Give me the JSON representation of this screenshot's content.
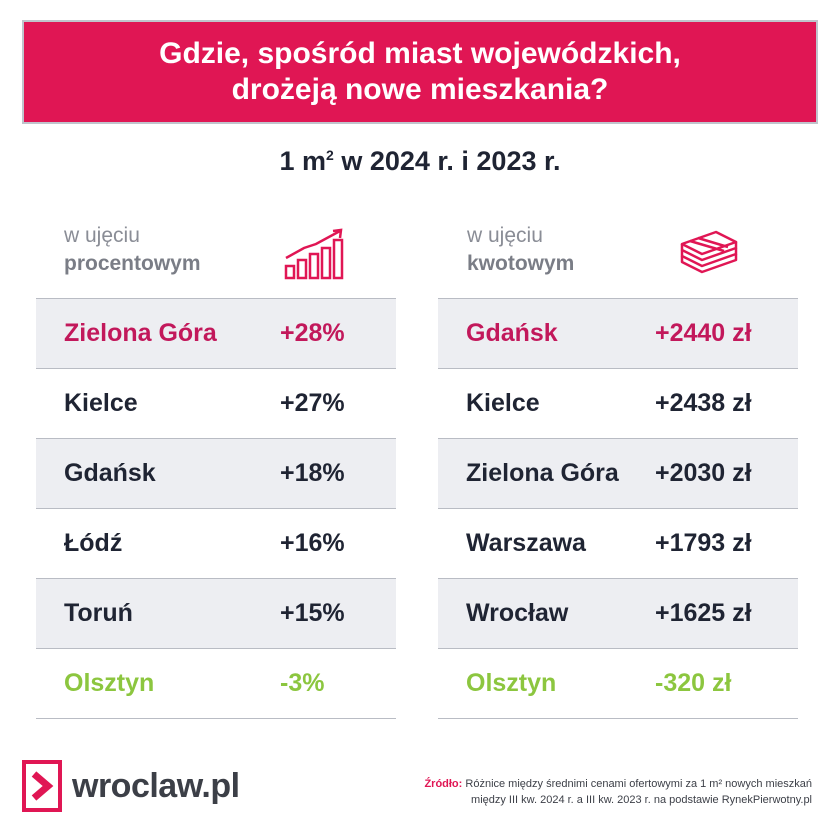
{
  "title": {
    "line1": "Gdzie, spośród miast wojewódzkich,",
    "line2": "drożeją nowe mieszkania?"
  },
  "subtitle": {
    "prefix": "1 m",
    "sup": "2",
    "suffix": " w 2024 r. i 2023 r."
  },
  "left": {
    "head_line1": "w ujęciu",
    "head_line2": "procentowym",
    "icon": "bar-chart-growth-icon",
    "rows": [
      {
        "city": "Zielona Góra",
        "value": "+28%"
      },
      {
        "city": "Kielce",
        "value": "+27%"
      },
      {
        "city": "Gdańsk",
        "value": "+18%"
      },
      {
        "city": "Łódź",
        "value": "+16%"
      },
      {
        "city": "Toruń",
        "value": "+15%"
      },
      {
        "city": "Olsztyn",
        "value": "-3%"
      }
    ]
  },
  "right": {
    "head_line1": "w ujęciu",
    "head_line2": "kwotowym",
    "icon": "money-stack-icon",
    "rows": [
      {
        "city": "Gdańsk",
        "value": "+2440 zł"
      },
      {
        "city": "Kielce",
        "value": "+2438 zł"
      },
      {
        "city": "Zielona Góra",
        "value": "+2030 zł"
      },
      {
        "city": "Warszawa",
        "value": "+1793 zł"
      },
      {
        "city": "Wrocław",
        "value": "+1625 zł"
      },
      {
        "city": "Olsztyn",
        "value": "-320 zł"
      }
    ]
  },
  "logo": {
    "text": "wroclaw.pl",
    "icon": "chevron-right-logo-icon"
  },
  "source": {
    "label": "Źródło:",
    "line1": " Różnice między średnimi cenami ofertowymi za 1 m² nowych mieszkań",
    "line2": "między III kw. 2024 r. a III kw. 2023 r. na podstawie RynekPierwotny.pl"
  },
  "colors": {
    "accent": "#e01654",
    "highlight_text": "#c2185b",
    "negative_text": "#8cc63f",
    "row_shade": "#edeef2"
  }
}
